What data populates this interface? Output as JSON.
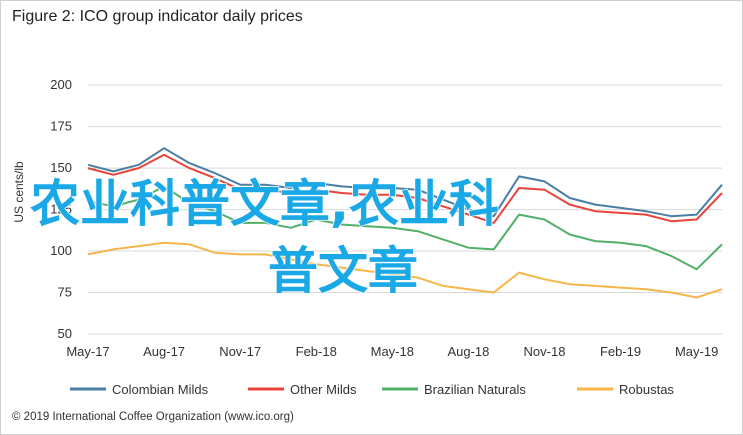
{
  "figure": {
    "title": "Figure 2: ICO group indicator daily prices",
    "copyright": "© 2019 International Coffee Organization (www.ico.org)"
  },
  "overlay": {
    "line1": "农业科普文章,农业科",
    "line2": "普文章"
  },
  "chart_data": {
    "type": "line",
    "title": "Figure 2: ICO group indicator daily prices",
    "ylabel": "US cents/lb",
    "xlabel": "",
    "ylim": [
      50,
      220
    ],
    "yticks": [
      50,
      75,
      100,
      125,
      150,
      175,
      200
    ],
    "xticks": [
      "May-17",
      "Aug-17",
      "Nov-17",
      "Feb-18",
      "May-18",
      "Aug-18",
      "Nov-18",
      "Feb-19",
      "May-19"
    ],
    "x": [
      "May-17",
      "Jun-17",
      "Jul-17",
      "Aug-17",
      "Sep-17",
      "Oct-17",
      "Nov-17",
      "Dec-17",
      "Jan-18",
      "Feb-18",
      "Mar-18",
      "Apr-18",
      "May-18",
      "Jun-18",
      "Jul-18",
      "Aug-18",
      "Sep-18",
      "Oct-18",
      "Nov-18",
      "Dec-18",
      "Jan-19",
      "Feb-19",
      "Mar-19",
      "Apr-19",
      "May-19",
      "Jun-19"
    ],
    "grid": "horizontal",
    "legend": "bottom",
    "series": [
      {
        "name": "Colombian Milds",
        "color": "#4a7ea3",
        "values": [
          152,
          148,
          152,
          162,
          153,
          147,
          140,
          140,
          138,
          141,
          139,
          138,
          138,
          137,
          131,
          125,
          121,
          145,
          142,
          132,
          128,
          126,
          124,
          121,
          122,
          140
        ]
      },
      {
        "name": "Other Milds",
        "color": "#e8443a",
        "values": [
          150,
          146,
          150,
          158,
          150,
          144,
          137,
          137,
          135,
          137,
          135,
          134,
          134,
          132,
          127,
          122,
          117,
          138,
          137,
          128,
          124,
          123,
          122,
          118,
          119,
          135
        ]
      },
      {
        "name": "Brazilian Naturals",
        "color": "#52b068",
        "values": [
          130,
          127,
          131,
          139,
          129,
          124,
          117,
          117,
          114,
          119,
          116,
          115,
          114,
          112,
          107,
          102,
          101,
          122,
          119,
          110,
          106,
          105,
          103,
          97,
          89,
          104
        ]
      },
      {
        "name": "Robustas",
        "color": "#f6b64a",
        "values": [
          98,
          101,
          103,
          105,
          104,
          99,
          98,
          98,
          95,
          92,
          90,
          88,
          86,
          84,
          79,
          77,
          75,
          87,
          83,
          80,
          79,
          78,
          77,
          75,
          72,
          77
        ]
      }
    ]
  }
}
